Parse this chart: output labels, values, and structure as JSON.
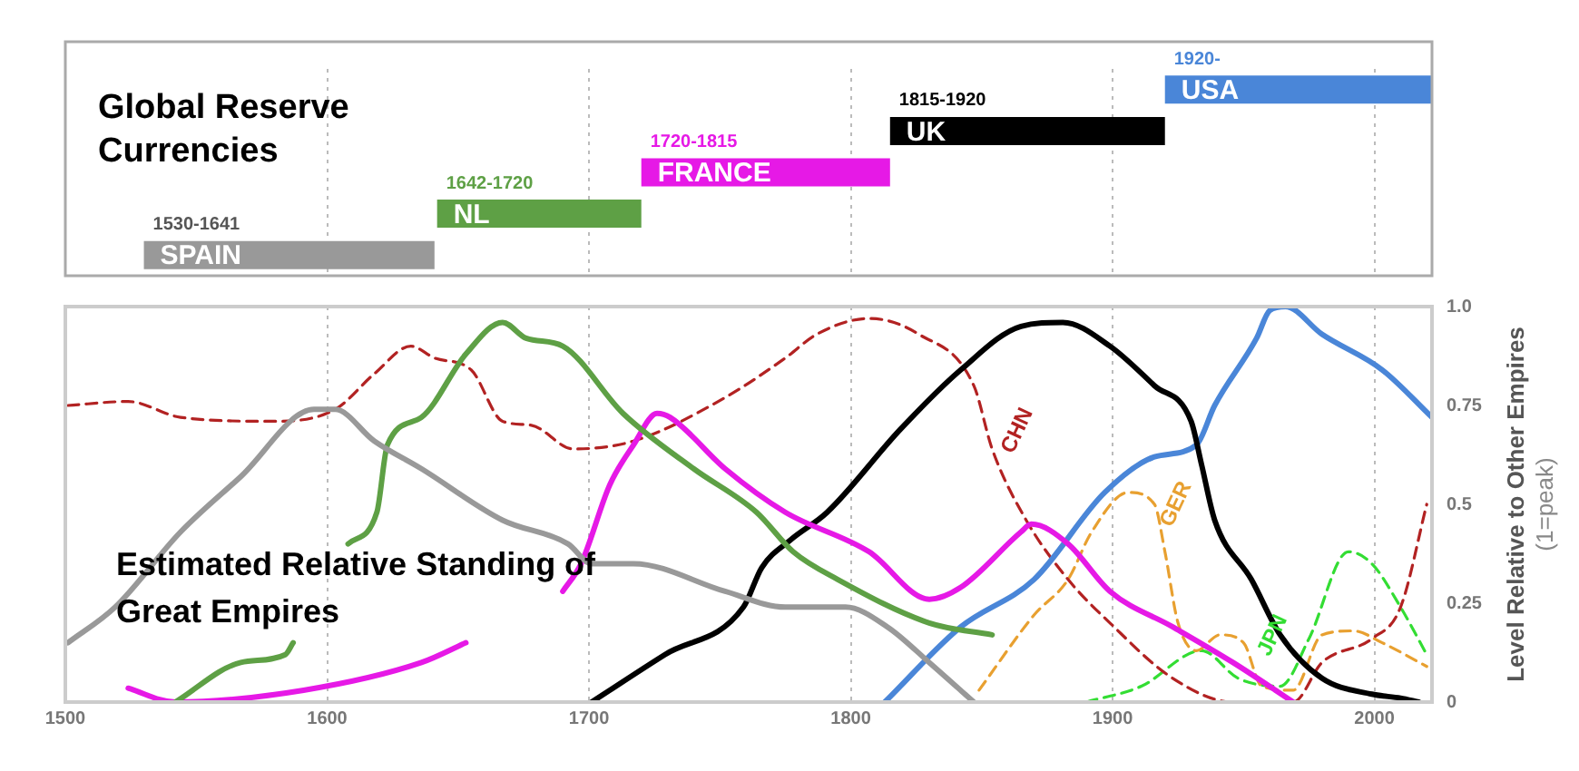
{
  "chart_data": [
    {
      "type": "bar",
      "title": "Global Reserve Currencies",
      "orientation": "horizontal",
      "categories": [
        "USA",
        "UK",
        "FRANCE",
        "NL",
        "SPAIN"
      ],
      "base": [
        1920,
        1815,
        1720,
        1642,
        1530
      ],
      "values": [
        102,
        105,
        95,
        78,
        111
      ],
      "colors": [
        "#4a86d8",
        "#000000",
        "#e619e6",
        "#5ea045",
        "#999999"
      ],
      "annotations": [
        {
          "text": "1920-",
          "x": 1920,
          "y": "USA"
        },
        {
          "text": "1815-1920",
          "x": 1815,
          "y": "UK"
        },
        {
          "text": "1720-1815",
          "x": 1720,
          "y": "FRANCE"
        },
        {
          "text": "1642-1720",
          "x": 1642,
          "y": "NL"
        },
        {
          "text": "1530-1641",
          "x": 1530,
          "y": "SPAIN"
        }
      ],
      "xlim": [
        1500,
        2022
      ],
      "xticks": [
        1600,
        1700,
        1800,
        1900,
        2000
      ],
      "tick_labels": false,
      "grid": "x",
      "legend": false
    },
    {
      "type": "line",
      "title": "Estimated Relative Standing of Great Empires",
      "ylabel": "Level Relative to Other Empires (1=peak)",
      "xlim": [
        1500,
        2022
      ],
      "xticks": [
        1500,
        1600,
        1700,
        1800,
        1900,
        2000
      ],
      "ylim": [
        0,
        1
      ],
      "yticks": [
        0,
        0.25,
        0.5,
        0.75,
        {
          "value": 1,
          "label": "1.0"
        }
      ],
      "grid": "x",
      "legend": false,
      "marker": "none",
      "series": [
        {
          "color": "#999999",
          "line_style": "solid",
          "x": [
            1501,
            1519,
            1544,
            1567,
            1595,
            1603,
            1618,
            1636,
            1667,
            1692,
            1701,
            1717,
            1752,
            1775,
            1798,
            1814,
            1830,
            1847
          ],
          "values": [
            0.15,
            0.24,
            0.43,
            0.57,
            0.74,
            0.74,
            0.66,
            0.59,
            0.46,
            0.4,
            0.35,
            0.35,
            0.28,
            0.24,
            0.24,
            0.19,
            0.1,
            0
          ]
        },
        {
          "color": "#5ea045",
          "line_style": "solid",
          "x": [
            1542,
            1567,
            1584,
            1587,
            1597,
            1608,
            1619,
            1623,
            1636,
            1653,
            1667,
            1676,
            1690,
            1713,
            1740,
            1764,
            1778,
            1795,
            1830,
            1854
          ],
          "values": [
            0,
            0.1,
            0.12,
            0.15,
            null,
            0.4,
            0.48,
            0.65,
            0.72,
            0.88,
            0.96,
            0.92,
            0.9,
            0.73,
            0.59,
            0.48,
            0.38,
            0.31,
            0.2,
            0.17
          ]
        },
        {
          "color": "#e619e6",
          "line_style": "solid",
          "x": [
            1524,
            1542,
            1591,
            1636,
            1653,
            1670,
            1690,
            1697,
            1708,
            1717,
            1726,
            1731,
            1752,
            1775,
            1807,
            1830,
            1842,
            1865,
            1869,
            1883,
            1899,
            1923,
            1946,
            1969
          ],
          "values": [
            0.035,
            0,
            0.03,
            0.1,
            0.15,
            null,
            0.28,
            0.35,
            0.55,
            0.65,
            0.73,
            0.72,
            0.59,
            0.48,
            0.38,
            0.26,
            0.29,
            0.43,
            0.45,
            0.4,
            0.28,
            0.19,
            0.1,
            0
          ]
        },
        {
          "color": "#000000",
          "line_style": "solid",
          "x": [
            1701,
            1729,
            1759,
            1766,
            1777,
            1791,
            1819,
            1842,
            1865,
            1881,
            1899,
            1916,
            1930,
            1934,
            1939,
            1953,
            1964,
            1980,
            1999,
            2010,
            2017
          ],
          "values": [
            0,
            0.12,
            0.24,
            0.34,
            0.41,
            0.48,
            0.69,
            0.84,
            0.95,
            0.96,
            0.9,
            0.8,
            0.71,
            0.6,
            0.46,
            0.31,
            0.17,
            0.06,
            0.02,
            0.01,
            0
          ]
        },
        {
          "color": "#4a86d8",
          "line_style": "solid",
          "x": [
            1813,
            1842,
            1870,
            1897,
            1916,
            1932,
            1939,
            1955,
            1960,
            1966,
            1980,
            2003,
            2022
          ],
          "values": [
            0,
            0.19,
            0.31,
            0.53,
            0.62,
            0.65,
            0.75,
            0.92,
            0.99,
            1,
            0.93,
            0.84,
            0.72
          ]
        },
        {
          "name": "CHN",
          "color": "#b22222",
          "line_style": "dashed",
          "x": [
            1501,
            1524,
            1544,
            1579,
            1603,
            1618,
            1632,
            1641,
            1655,
            1667,
            1678,
            1694,
            1717,
            1752,
            1775,
            1787,
            1807,
            1826,
            1847,
            1854,
            1867,
            1883,
            1899,
            1923,
            1946,
            1969,
            1980,
            1999,
            2010,
            2020
          ],
          "values": [
            0.75,
            0.76,
            0.72,
            0.71,
            0.74,
            0.83,
            0.9,
            0.87,
            0.84,
            0.71,
            0.7,
            0.64,
            0.66,
            0.77,
            0.87,
            0.93,
            0.97,
            0.93,
            0.8,
            0.64,
            0.46,
            0.31,
            0.2,
            0.06,
            0,
            0,
            0.1,
            0.16,
            0.24,
            0.5
          ]
        },
        {
          "name": "GER",
          "color": "#e8a030",
          "line_style": "dashed",
          "x": [
            1849,
            1870,
            1883,
            1892,
            1906,
            1916,
            1920,
            1925,
            1932,
            1941,
            1950,
            1957,
            1969,
            1980,
            1992,
            2003,
            2020
          ],
          "values": [
            0.03,
            0.22,
            0.31,
            0.43,
            0.53,
            0.5,
            0.38,
            0.2,
            0.13,
            0.17,
            0.15,
            0.04,
            0.03,
            0.17,
            0.18,
            0.15,
            0.09
          ]
        },
        {
          "name": "JPN",
          "color": "#33dd33",
          "line_style": "dashed",
          "x": [
            1890,
            1911,
            1934,
            1948,
            1964,
            1975,
            1990,
            1999,
            2010,
            2020
          ],
          "values": [
            0,
            0.04,
            0.13,
            0.06,
            0.04,
            0.16,
            0.38,
            0.35,
            0.24,
            0.12
          ]
        }
      ]
    }
  ]
}
